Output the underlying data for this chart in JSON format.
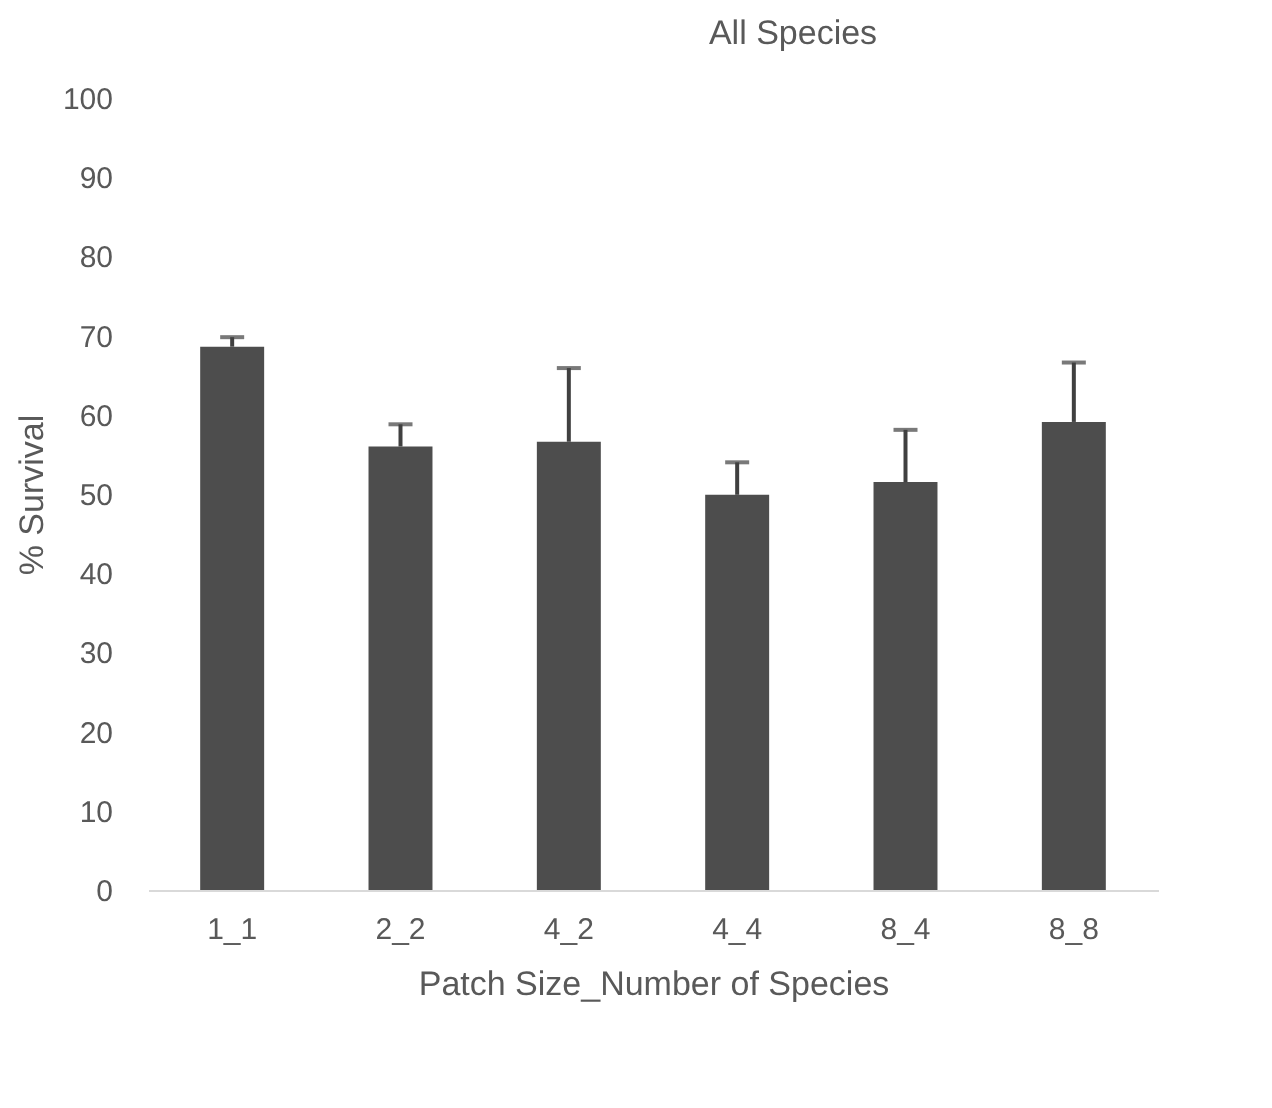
{
  "chart_data": {
    "type": "bar",
    "title": "All Species",
    "xlabel": "Patch Size_Number of Species",
    "ylabel": "% Survival",
    "categories": [
      "1_1",
      "2_2",
      "4_2",
      "4_4",
      "8_4",
      "8_8"
    ],
    "values": [
      68.6,
      56,
      56.6,
      49.9,
      51.5,
      59.1
    ],
    "errors": [
      [
        68.6,
        69.8
      ],
      [
        56,
        58.8
      ],
      [
        56.6,
        65.9
      ],
      [
        49.9,
        54
      ],
      [
        51.5,
        58.1
      ],
      [
        59.1,
        66.6
      ]
    ],
    "color": "#4d4d4d",
    "ylim": [
      0,
      100
    ],
    "yticks": [
      0,
      10,
      20,
      30,
      40,
      50,
      60,
      70,
      80,
      90,
      100
    ],
    "grid": false
  }
}
